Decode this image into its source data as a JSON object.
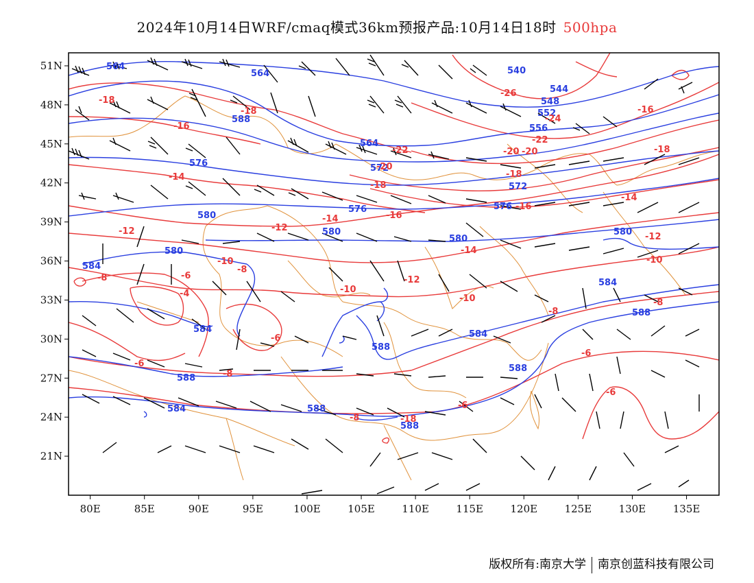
{
  "title": {
    "main": "2024年10月14日WRF/cmaq模式36km预报产品:10月14日18时",
    "level": "500hpa"
  },
  "axes": {
    "lon_ticks": [
      "80E",
      "85E",
      "90E",
      "95E",
      "100E",
      "105E",
      "110E",
      "115E",
      "120E",
      "125E",
      "130E",
      "135E"
    ],
    "lat_ticks": [
      "51N",
      "48N",
      "45N",
      "42N",
      "39N",
      "36N",
      "33N",
      "30N",
      "27N",
      "24N",
      "21N"
    ],
    "lon_range": [
      78,
      138
    ],
    "lat_range": [
      18,
      52
    ]
  },
  "colors": {
    "height_contour": "#2a3fe0",
    "temperature_contour": "#e83a3a",
    "boundaries": "#e0913a",
    "wind_barbs": "#000000"
  },
  "contours": {
    "geopotential_height_labels": [
      "564",
      "584",
      "588",
      "576",
      "580",
      "564",
      "564",
      "540",
      "544",
      "548",
      "552",
      "556",
      "572",
      "576",
      "580",
      "584",
      "588",
      "584",
      "588",
      "588",
      "588",
      "580",
      "576",
      "580",
      "588",
      "584",
      "584",
      "572",
      "580",
      "588"
    ],
    "temperature_labels": [
      "-18",
      "-16",
      "-14",
      "-12",
      "-10",
      "-8",
      "-8",
      "-6",
      "-4",
      "-6",
      "-6",
      "-8",
      "-10",
      "-12",
      "-14",
      "-16",
      "-18",
      "-18",
      "-20",
      "-22",
      "-20",
      "-22",
      "-24",
      "-26",
      "-16",
      "-18",
      "-18",
      "-14",
      "-12",
      "-10",
      "-8",
      "-8",
      "-6",
      "-6",
      "-6",
      "-8",
      "-10",
      "-12",
      "-14",
      "-16",
      "-20",
      "-18"
    ]
  },
  "footer": {
    "copyright": "版权所有:南京大学",
    "company": "南京创蓝科技有限公司"
  }
}
